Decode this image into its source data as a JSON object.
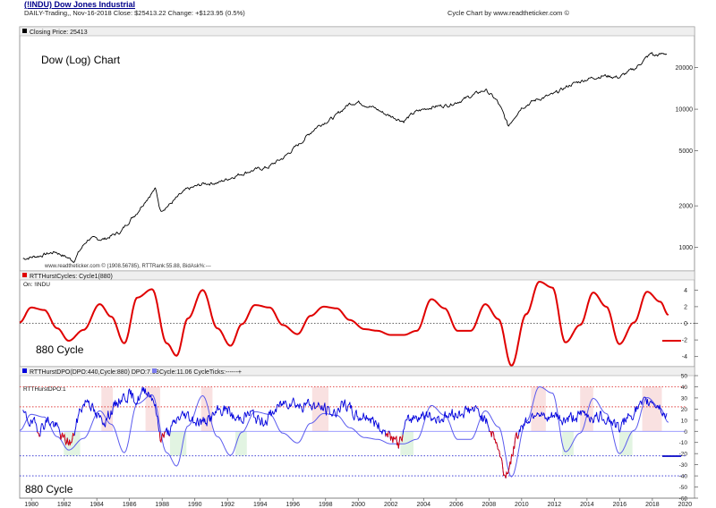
{
  "header": {
    "symbol_title": "(!INDU) Dow Jones Industrial",
    "info_line": "DAILY-Trading,, Nov-16-2018 Close: $25413.22 Change: +$123.95 (0.5%)",
    "credit": "Cycle Chart by www.readtheticker.com ©"
  },
  "chart_data": [
    {
      "type": "line",
      "panel": "price",
      "legend": "Closing Price: 25413",
      "annotation": "Dow (Log) Chart",
      "footer": "www.readtheticker.com © (1908.56785), RTTRank:55.88, BidAsk%:---",
      "yscale": "log",
      "ylim": [
        750,
        32000
      ],
      "yticks": [
        1000,
        2000,
        5000,
        10000,
        20000
      ],
      "ytick_labels": [
        "1000",
        "2000",
        "5000",
        "10000",
        "20000"
      ],
      "x": [
        1979.5,
        1980.5,
        1981.5,
        1982.6,
        1983.5,
        1984.5,
        1985.5,
        1986.5,
        1987.6,
        1987.9,
        1988.5,
        1989.5,
        1990.6,
        1991.5,
        1992.5,
        1993.5,
        1994.5,
        1995.5,
        1996.5,
        1997.5,
        1998.6,
        1999.5,
        2000.0,
        2001.0,
        2001.7,
        2002.8,
        2003.5,
        2004.5,
        2005.5,
        2006.5,
        2007.8,
        2008.5,
        2009.2,
        2010.0,
        2011.0,
        2012.0,
        2013.0,
        2014.0,
        2015.0,
        2016.0,
        2017.0,
        2018.0,
        2018.1,
        2018.5,
        2018.9
      ],
      "values": [
        830,
        870,
        930,
        800,
        1150,
        1150,
        1300,
        1800,
        2650,
        1850,
        2050,
        2600,
        2900,
        2950,
        3300,
        3600,
        3800,
        4500,
        5700,
        7500,
        8800,
        11000,
        11300,
        10200,
        9200,
        8200,
        9500,
        10400,
        10700,
        11800,
        13800,
        11500,
        7500,
        10300,
        11800,
        12800,
        15000,
        16500,
        17500,
        17000,
        19800,
        25500,
        24300,
        24800,
        25413
      ]
    },
    {
      "type": "line",
      "panel": "cycle",
      "legend": "RTTHurstCycles: Cycle1(880)",
      "sublegend": "On: !INDU",
      "annotation": "880 Cycle",
      "ylim": [
        -5,
        5
      ],
      "yticks": [
        4,
        2,
        0,
        -2,
        -4
      ],
      "ytick_labels": [
        "4",
        "2",
        "0",
        "-2",
        "-4"
      ],
      "x": [
        1979.3,
        1980.0,
        1980.8,
        1981.6,
        1982.3,
        1983.2,
        1984.2,
        1984.9,
        1985.7,
        1986.5,
        1987.4,
        1988.3,
        1988.9,
        1989.6,
        1990.5,
        1991.4,
        1992.2,
        1992.9,
        1993.7,
        1994.6,
        1995.4,
        1996.3,
        1997.1,
        1997.9,
        1998.7,
        1999.5,
        2000.4,
        2001.2,
        2002.0,
        2002.8,
        2003.6,
        2004.5,
        2005.3,
        2006.1,
        2006.9,
        2007.8,
        2008.6,
        2009.4,
        2010.3,
        2011.1,
        2011.9,
        2012.7,
        2013.6,
        2014.4,
        2015.2,
        2016.0,
        2016.9,
        2017.7,
        2018.5,
        2019.0
      ],
      "values": [
        0.1,
        1.9,
        1.6,
        -0.6,
        -2.1,
        -0.8,
        2.3,
        0.8,
        -2.4,
        3.1,
        4.1,
        -2.4,
        -3.9,
        0.6,
        4.0,
        -0.6,
        -2.7,
        -0.1,
        2.2,
        1.9,
        -0.2,
        -1.3,
        0.9,
        2.0,
        1.8,
        0.4,
        -0.7,
        -0.9,
        -1.4,
        -1.4,
        -0.9,
        2.9,
        1.8,
        -0.9,
        -0.9,
        2.3,
        0.5,
        -5.1,
        1.1,
        5.0,
        4.3,
        -2.3,
        -0.2,
        3.7,
        2.0,
        -2.5,
        0.1,
        3.8,
        2.6,
        1.0
      ]
    },
    {
      "type": "line",
      "panel": "dpo",
      "legend": "RTTHurstDPO(DPO:440,Cycle:880) DPO:7.63",
      "legend2": "Cycle:11.06 CycleTicks:------+",
      "sublegend": "RTTHurstDPO:1",
      "annotation": "880 Cycle",
      "ylim": [
        -60,
        50
      ],
      "yticks": [
        50,
        40,
        30,
        20,
        10,
        0,
        -10,
        -20,
        -30,
        -40,
        -50,
        -60
      ],
      "ytick_labels": [
        "50",
        "40",
        "30",
        "20",
        "10",
        "0",
        "-10",
        "-20",
        "-30",
        "-40",
        "-50",
        "-60"
      ],
      "reference_lines": [
        40,
        22,
        0,
        -22,
        -40
      ],
      "x": [
        1979.5,
        1980.0,
        1980.5,
        1981.0,
        1981.5,
        1982.0,
        1982.5,
        1983.0,
        1983.5,
        1984.0,
        1984.5,
        1985.0,
        1985.5,
        1986.0,
        1986.5,
        1987.0,
        1987.5,
        1987.9,
        1988.5,
        1989.0,
        1989.5,
        1990.0,
        1990.5,
        1991.0,
        1991.5,
        1992.0,
        1992.5,
        1993.0,
        1993.5,
        1994.0,
        1994.5,
        1995.0,
        1995.5,
        1996.0,
        1996.5,
        1997.0,
        1997.5,
        1998.0,
        1998.5,
        1999.0,
        1999.5,
        2000.0,
        2000.5,
        2001.0,
        2001.5,
        2002.0,
        2002.5,
        2003.0,
        2003.5,
        2004.0,
        2004.5,
        2005.0,
        2005.5,
        2006.0,
        2006.5,
        2007.0,
        2007.5,
        2008.0,
        2008.5,
        2009.0,
        2009.3,
        2009.7,
        2010.0,
        2010.5,
        2011.0,
        2011.5,
        2012.0,
        2012.5,
        2013.0,
        2013.5,
        2014.0,
        2014.5,
        2015.0,
        2015.5,
        2016.0,
        2016.5,
        2017.0,
        2017.5,
        2018.0,
        2018.5,
        2018.9
      ],
      "values": [
        15,
        8,
        2,
        10,
        5,
        -8,
        -10,
        20,
        30,
        12,
        10,
        20,
        30,
        33,
        28,
        38,
        30,
        -5,
        0,
        12,
        15,
        10,
        8,
        12,
        18,
        20,
        10,
        14,
        16,
        8,
        12,
        20,
        26,
        28,
        22,
        25,
        22,
        20,
        15,
        24,
        20,
        12,
        15,
        8,
        2,
        -5,
        -12,
        8,
        14,
        15,
        12,
        12,
        14,
        15,
        18,
        20,
        16,
        5,
        -10,
        -40,
        -30,
        -5,
        5,
        12,
        20,
        8,
        14,
        10,
        12,
        14,
        16,
        12,
        14,
        10,
        2,
        12,
        20,
        24,
        28,
        22,
        12
      ]
    }
  ],
  "x_axis": {
    "years": [
      1980,
      1982,
      1984,
      1986,
      1988,
      1990,
      1992,
      1994,
      1996,
      1998,
      2000,
      2002,
      2004,
      2006,
      2008,
      2010,
      2012,
      2014,
      2016,
      2018,
      2020
    ],
    "labels": [
      "1980",
      "1982",
      "1984",
      "1986",
      "1988",
      "1990",
      "1992",
      "1994",
      "1996",
      "1998",
      "2000",
      "2002",
      "2004",
      "2006",
      "2008",
      "2010",
      "2012",
      "2014",
      "2016",
      "2018",
      "2020"
    ]
  },
  "colors": {
    "price": "#000000",
    "cycle": "#e00000",
    "dpo": "#0000dd",
    "dpo_cycle": "#5a5aee",
    "red_dot": "#e04040",
    "blue_dot": "#2a2ad0"
  }
}
